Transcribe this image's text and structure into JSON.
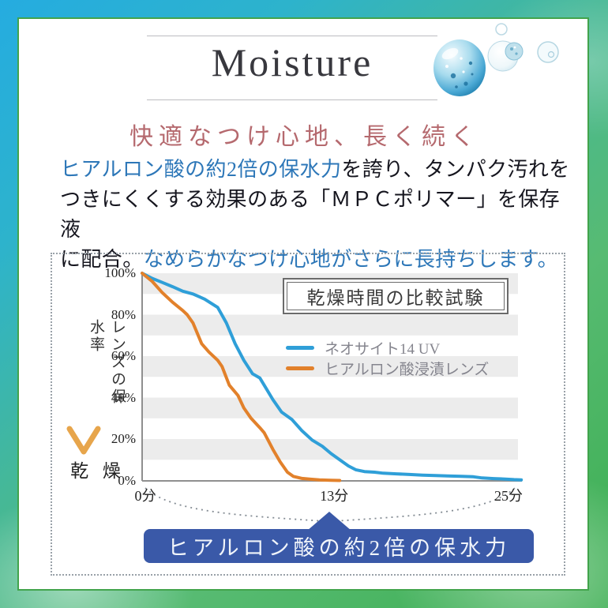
{
  "header": {
    "title": "Moisture"
  },
  "subtitle": "快適なつけ心地、長く続く",
  "paragraph": {
    "lines": [
      {
        "runs": [
          {
            "text": "ヒアルロン酸の約2倍の保水力",
            "style": "accent"
          },
          {
            "text": "を誇り、タンパク汚れを",
            "style": "normal"
          }
        ]
      },
      {
        "runs": [
          {
            "text": "つきにくくする効果のある「ＭＰＣポリマー」を保存液",
            "style": "normal"
          }
        ]
      },
      {
        "runs": [
          {
            "text": "に配合。",
            "style": "normal"
          },
          {
            "text": "なめらかなつけ心地がさらに長持ちします。",
            "style": "accent"
          }
        ]
      }
    ],
    "accent_color": "#2d77b8",
    "text_color": "#15151e"
  },
  "chart_data": {
    "type": "line",
    "title": "乾燥時間の比較試験",
    "xlabel": "",
    "ylabel": "レンズの保水率",
    "y_axis_end_label": "乾 燥",
    "xlim": [
      0,
      26.2
    ],
    "ylim": [
      0,
      100
    ],
    "x_ticks": [
      {
        "label": "0分",
        "minute": 0
      },
      {
        "label": "13分",
        "minute": 13
      },
      {
        "label": "25分",
        "minute": 25
      }
    ],
    "y_ticks": [
      {
        "label": "100%",
        "pct": 100
      },
      {
        "label": "80%",
        "pct": 80
      },
      {
        "label": "60%",
        "pct": 60
      },
      {
        "label": "40%",
        "pct": 40
      },
      {
        "label": "20%",
        "pct": 20
      },
      {
        "label": "0%",
        "pct": 0
      }
    ],
    "grid": "striped-horizontal-10pct",
    "stripe_color": "#ececec",
    "legend_position": "inside-right",
    "series": [
      {
        "name": "ネオサイト14 UV",
        "color": "#2f9fd8",
        "x": [
          0,
          0.7,
          1.4,
          2.1,
          2.8,
          3.5,
          4.3,
          5.2,
          5.8,
          6.4,
          7.0,
          7.6,
          8.1,
          8.4,
          9.0,
          9.6,
          10.3,
          11.0,
          11.7,
          12.4,
          13.0,
          13.6,
          14.2,
          14.7,
          15.3,
          16.0,
          16.6,
          17.5,
          18.4,
          19.3,
          20.2,
          21.0,
          22.0,
          22.8,
          23.4,
          24.2,
          25.0,
          25.6,
          26.1
        ],
        "y": [
          100,
          97.5,
          95.5,
          93.5,
          91.3,
          90,
          87.5,
          83.5,
          76,
          66,
          58,
          51.5,
          49.5,
          46,
          39,
          33,
          29.5,
          24,
          19.5,
          16.5,
          13,
          10,
          7,
          5.2,
          4.3,
          4.0,
          3.5,
          3.2,
          2.9,
          2.6,
          2.4,
          2.2,
          2.0,
          1.8,
          1.2,
          0.9,
          0.7,
          0.4,
          0.3
        ]
      },
      {
        "name": "ヒアルロン酸浸漬レンズ",
        "color": "#e2812b",
        "x": [
          0,
          0.7,
          1.4,
          2.1,
          2.8,
          3.1,
          3.5,
          4.1,
          4.6,
          5.2,
          5.5,
          6.0,
          6.3,
          6.6,
          7.0,
          7.5,
          8.1,
          8.4,
          9.0,
          9.5,
          10.0,
          10.4,
          11.0,
          11.6,
          12.2,
          13.0,
          13.6
        ],
        "y": [
          100,
          96,
          90.5,
          86,
          82,
          80,
          76,
          66,
          62,
          58,
          55,
          46,
          43.5,
          41,
          35,
          30,
          25.5,
          23,
          15,
          9,
          4,
          2,
          1,
          0.6,
          0.3,
          0.1,
          0
        ]
      }
    ],
    "annotation": {
      "label": "ヒアルロン酸の約2倍の保水力",
      "points_at_minute": 13
    }
  },
  "banner": {
    "label": "ヒアルロン酸の約2倍の保水力",
    "color": "#3a59a8"
  },
  "colors": {
    "frame_gradient_start": "#25ace0",
    "frame_gradient_end": "#3cae51",
    "panel_border": "#42a44c",
    "subtitle": "#b5696e",
    "series_blue": "#2f9fd8",
    "series_orange": "#e2812b",
    "banner_bg": "#3a59a8"
  }
}
